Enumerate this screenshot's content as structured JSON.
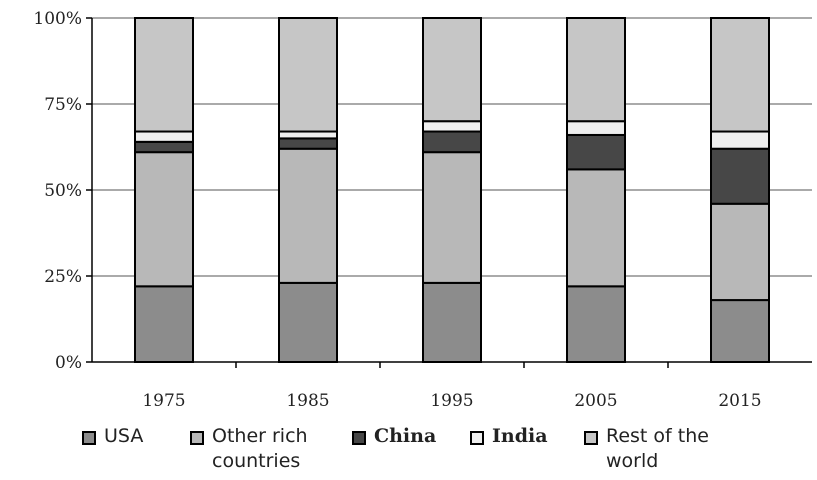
{
  "chart_data": {
    "type": "bar",
    "stacked": true,
    "percent": true,
    "categories": [
      "1975",
      "1985",
      "1995",
      "2005",
      "2015"
    ],
    "ylim": [
      0,
      100
    ],
    "yticks": [
      "0%",
      "25%",
      "50%",
      "75%",
      "100%"
    ],
    "gridlines": true,
    "legend_position": "bottom",
    "series": [
      {
        "name": "USA",
        "color": "#8c8c8c",
        "values": [
          22,
          23,
          23,
          22,
          18
        ]
      },
      {
        "name": "Other rich\ncountries",
        "color": "#b8b8b8",
        "values": [
          39,
          39,
          38,
          34,
          28
        ]
      },
      {
        "name": "China",
        "color": "#474747",
        "values": [
          3,
          3,
          6,
          10,
          16
        ]
      },
      {
        "name": "India",
        "color": "#eeeeee",
        "values": [
          3,
          2,
          3,
          4,
          5
        ]
      },
      {
        "name": "Rest of the\nworld",
        "color": "#c6c6c6",
        "values": [
          33,
          33,
          30,
          30,
          33
        ]
      }
    ]
  }
}
